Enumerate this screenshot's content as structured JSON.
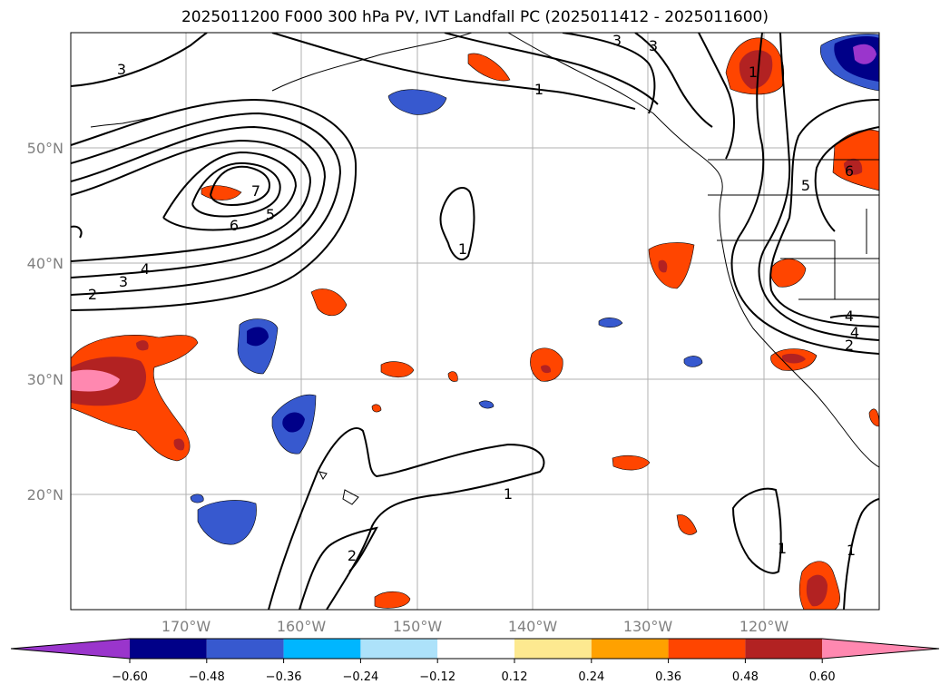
{
  "title": "2025011200 F000 300 hPa PV, IVT Landfall PC (2025011412 - 2025011600)",
  "lat_labels": [
    "50°N",
    "40°N",
    "30°N",
    "20°N"
  ],
  "lon_labels": [
    "170°W",
    "160°W",
    "150°W",
    "140°W",
    "130°W",
    "120°W"
  ],
  "colorbar": {
    "ticks": [
      "−0.60",
      "−0.48",
      "−0.36",
      "−0.24",
      "−0.12",
      "0.12",
      "0.24",
      "0.36",
      "0.48",
      "0.60"
    ],
    "colors": [
      "#9a35cc",
      "#000088",
      "#3759cf",
      "#00b6ff",
      "#ade2fa",
      "#ffffff",
      "#fde990",
      "#ffa100",
      "#ff4500",
      "#b22222",
      "#ff88b0"
    ]
  },
  "pv_contour_labels": [
    "1",
    "1",
    "1",
    "1",
    "1",
    "1",
    "2",
    "2",
    "2",
    "3",
    "3",
    "3",
    "3",
    "4",
    "4",
    "4",
    "5",
    "5",
    "6",
    "6",
    "7"
  ],
  "map_extent": {
    "lon": [
      -180,
      -110
    ],
    "lat": [
      10,
      60
    ]
  },
  "gridlines": true
}
